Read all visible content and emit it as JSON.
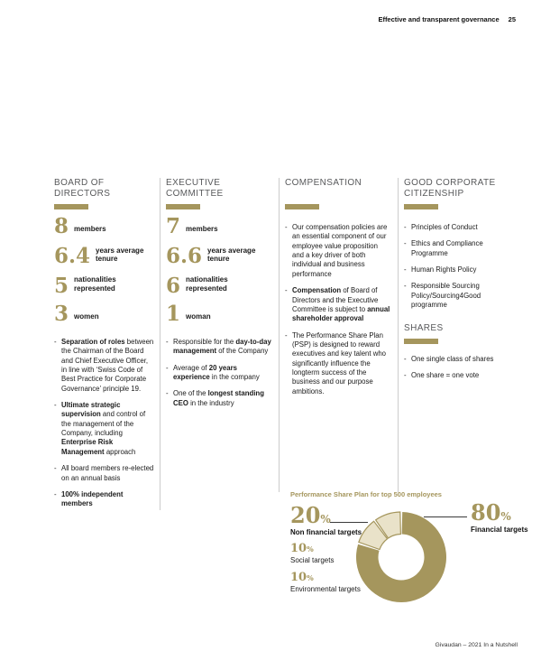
{
  "header": {
    "title": "Effective and transparent governance",
    "page_number": "25"
  },
  "footer": {
    "text": "Givaudan – 2021 In a Nutshell"
  },
  "colors": {
    "gold": "#a5965d",
    "gold_light": "#e9e2c9",
    "heading_gray": "#58595b",
    "divider": "#cccccc",
    "text": "#1a1a1a"
  },
  "columns": {
    "board": {
      "heading": "BOARD OF DIRECTORS",
      "stats": [
        {
          "value": "8",
          "label": "members"
        },
        {
          "value": "6.4",
          "label": "years average tenure"
        },
        {
          "value": "5",
          "label": "nationalities represented"
        },
        {
          "value": "3",
          "label": "women"
        }
      ],
      "bullets": [
        [
          {
            "b": true,
            "t": "Separation of roles"
          },
          {
            "t": " between the Chairman of the Board and Chief Executive Officer, in line with ‘Swiss Code of Best Practice for Corporate Governance’ principle 19."
          }
        ],
        [
          {
            "b": true,
            "t": "Ultimate strategic supervision"
          },
          {
            "t": " and control of the management of the Company, including "
          },
          {
            "b": true,
            "t": "Enterprise Risk Management"
          },
          {
            "t": " approach"
          }
        ],
        [
          {
            "t": "All board members re-elected on an annual basis"
          }
        ],
        [
          {
            "b": true,
            "t": "100% independent members"
          }
        ]
      ]
    },
    "executive": {
      "heading": "EXECUTIVE COMMITTEE",
      "stats": [
        {
          "value": "7",
          "label": "members"
        },
        {
          "value": "6.6",
          "label": "years average tenure"
        },
        {
          "value": "6",
          "label": "nationalities represented"
        },
        {
          "value": "1",
          "label": "woman"
        }
      ],
      "bullets": [
        [
          {
            "t": "Responsible for the "
          },
          {
            "b": true,
            "t": "day-to-day management"
          },
          {
            "t": " of the Company"
          }
        ],
        [
          {
            "t": "Average of "
          },
          {
            "b": true,
            "t": "20 years experience"
          },
          {
            "t": " in the company"
          }
        ],
        [
          {
            "t": "One of the "
          },
          {
            "b": true,
            "t": "longest standing CEO"
          },
          {
            "t": " in the industry"
          }
        ]
      ]
    },
    "compensation": {
      "heading": "COMPENSATION",
      "bullets": [
        [
          {
            "t": "Our compensation policies are an essential component of our employee value proposition and a key driver of both individual and business performance"
          }
        ],
        [
          {
            "b": true,
            "t": "Compensation"
          },
          {
            "t": " of Board of Directors and the Executive Committee is subject to "
          },
          {
            "b": true,
            "t": "annual shareholder approval"
          }
        ],
        [
          {
            "t": "The Performance Share Plan (PSP) is designed to reward executives and key talent who significantly influence the longterm success of the business and our purpose ambitions."
          }
        ]
      ]
    },
    "citizenship": {
      "heading": "GOOD CORPORATE CITIZENSHIP",
      "bullets": [
        [
          {
            "t": "Principles of Conduct"
          }
        ],
        [
          {
            "t": "Ethics and Compliance Programme"
          }
        ],
        [
          {
            "t": "Human Rights Policy"
          }
        ],
        [
          {
            "t": "Responsible Sourcing Policy/Sourcing4Good programme"
          }
        ]
      ],
      "shares": {
        "heading": "SHARES",
        "bullets": [
          [
            {
              "t": "One single class of shares"
            }
          ],
          [
            {
              "t": "One share = one vote"
            }
          ]
        ]
      }
    }
  },
  "chart_data": {
    "type": "pie",
    "donut": true,
    "title": "Performance Share Plan for top 500 employees",
    "percent_symbol": "%",
    "segments": [
      {
        "label": "Financial targets",
        "value": 80,
        "color": "#a5965d",
        "outlined": false
      },
      {
        "label": "Environmental targets",
        "value": 10,
        "color": "#e9e2c9",
        "outlined": true
      },
      {
        "label": "Social targets",
        "value": 10,
        "color": "#e9e2c9",
        "outlined": true
      }
    ],
    "group_total": {
      "label": "Non financial targets",
      "value": 20
    },
    "callouts": {
      "left": {
        "pct": "20",
        "label": "Non financial targets",
        "subs": [
          {
            "pct": "10",
            "label": "Social targets"
          },
          {
            "pct": "10",
            "label": "Environmental targets"
          }
        ]
      },
      "right": {
        "pct": "80",
        "label": "Financial targets"
      }
    }
  }
}
